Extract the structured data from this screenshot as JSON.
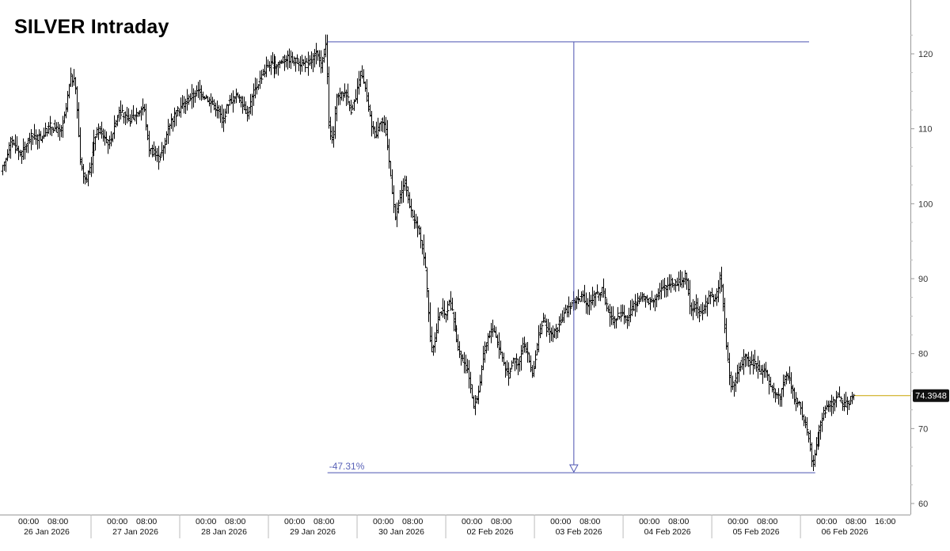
{
  "title": "SILVER Intraday",
  "colors": {
    "bars": "#000000",
    "measure_line": "#4b53b0",
    "last_price_line": "#c8a400",
    "last_price_tag_bg": "#111111",
    "axis": "#999999"
  },
  "chart_data": {
    "type": "ohlc",
    "title": "SILVER Intraday",
    "ylim": [
      58.5,
      125
    ],
    "y_ticks": [
      60,
      70,
      80,
      90,
      100,
      110,
      120
    ],
    "y_tick_labels": [
      "60",
      "70",
      "80",
      "90",
      "100",
      "110",
      "120"
    ],
    "x_range": [
      0,
      92
    ],
    "days": [
      {
        "date": "26 Jan 2026",
        "start": 0
      },
      {
        "date": "27 Jan 2026",
        "start": 9
      },
      {
        "date": "28 Jan 2026",
        "start": 18
      },
      {
        "date": "29 Jan 2026",
        "start": 27
      },
      {
        "date": "30 Jan 2026",
        "start": 36
      },
      {
        "date": "02 Feb 2026",
        "start": 45
      },
      {
        "date": "03 Feb 2026",
        "start": 54
      },
      {
        "date": "04 Feb 2026",
        "start": 63
      },
      {
        "date": "05 Feb 2026",
        "start": 72
      },
      {
        "date": "06 Feb 2026",
        "start": 81
      }
    ],
    "time_labels": [
      "00:00",
      "08:00",
      "16:00"
    ],
    "price_path": [
      [
        0,
        104
      ],
      [
        1,
        108.5
      ],
      [
        2,
        106.5
      ],
      [
        3,
        109
      ],
      [
        4,
        108.8
      ],
      [
        5,
        110.5
      ],
      [
        6,
        109.5
      ],
      [
        6.5,
        112
      ],
      [
        7,
        117
      ],
      [
        7.5,
        116
      ],
      [
        8,
        106
      ],
      [
        8.5,
        103
      ],
      [
        9,
        104.5
      ],
      [
        9.5,
        109
      ],
      [
        10,
        110
      ],
      [
        11,
        108
      ],
      [
        12,
        112.5
      ],
      [
        13,
        111
      ],
      [
        14,
        112.5
      ],
      [
        14.5,
        113
      ],
      [
        15,
        107.5
      ],
      [
        16,
        106
      ],
      [
        16.5,
        107.5
      ],
      [
        17,
        110.5
      ],
      [
        18,
        112.5
      ],
      [
        19,
        114
      ],
      [
        20,
        115
      ],
      [
        21,
        114
      ],
      [
        22,
        112.5
      ],
      [
        22.5,
        111
      ],
      [
        23,
        113.5
      ],
      [
        24,
        114.5
      ],
      [
        25,
        112
      ],
      [
        25.5,
        114.5
      ],
      [
        26,
        116
      ],
      [
        27,
        118.5
      ],
      [
        28,
        118.5
      ],
      [
        29,
        119.5
      ],
      [
        30,
        119
      ],
      [
        31,
        118.5
      ],
      [
        32,
        120
      ],
      [
        32.5,
        118.5
      ],
      [
        33,
        121.5
      ],
      [
        33.3,
        110
      ],
      [
        33.7,
        108
      ],
      [
        34,
        114
      ],
      [
        35,
        115
      ],
      [
        35.5,
        112.5
      ],
      [
        36,
        114
      ],
      [
        36.5,
        117.5
      ],
      [
        37,
        115
      ],
      [
        37.5,
        111
      ],
      [
        38,
        109
      ],
      [
        38.5,
        111.5
      ],
      [
        39,
        110
      ],
      [
        39.5,
        104
      ],
      [
        40,
        98
      ],
      [
        40.5,
        101
      ],
      [
        41,
        103
      ],
      [
        41.5,
        99
      ],
      [
        42,
        97.5
      ],
      [
        42.5,
        96
      ],
      [
        43,
        92
      ],
      [
        43.3,
        87
      ],
      [
        43.6,
        80
      ],
      [
        44,
        82
      ],
      [
        44.5,
        86
      ],
      [
        45,
        85
      ],
      [
        45.5,
        87
      ],
      [
        46,
        84
      ],
      [
        46.5,
        80
      ],
      [
        47,
        79
      ],
      [
        47.5,
        77
      ],
      [
        48,
        73
      ],
      [
        48.5,
        75
      ],
      [
        49,
        80
      ],
      [
        49.5,
        82.5
      ],
      [
        50,
        83.5
      ],
      [
        50.5,
        81
      ],
      [
        51,
        79
      ],
      [
        51.5,
        77
      ],
      [
        52,
        79.5
      ],
      [
        52.5,
        78.5
      ],
      [
        53,
        81.5
      ],
      [
        53.5,
        79.5
      ],
      [
        54,
        77
      ],
      [
        54.5,
        82
      ],
      [
        55,
        84.5
      ],
      [
        55.5,
        83
      ],
      [
        56,
        82.5
      ],
      [
        56.5,
        83.5
      ],
      [
        57,
        85
      ],
      [
        57.5,
        86
      ],
      [
        58,
        87
      ],
      [
        59,
        87.5
      ],
      [
        59.5,
        86.5
      ],
      [
        60,
        87.5
      ],
      [
        61,
        88.5
      ],
      [
        61.5,
        86
      ],
      [
        62,
        84.5
      ],
      [
        62.5,
        85
      ],
      [
        63,
        85.5
      ],
      [
        63.5,
        84.5
      ],
      [
        64,
        86
      ],
      [
        65,
        87.5
      ],
      [
        66,
        87
      ],
      [
        67,
        88.5
      ],
      [
        68,
        89.5
      ],
      [
        69,
        89.5
      ],
      [
        69.5,
        90.5
      ],
      [
        70,
        86
      ],
      [
        70.5,
        86.5
      ],
      [
        71,
        85
      ],
      [
        71.5,
        86.5
      ],
      [
        72,
        88
      ],
      [
        72.5,
        87
      ],
      [
        73,
        90.5
      ],
      [
        73.3,
        86
      ],
      [
        73.6,
        81
      ],
      [
        74,
        76
      ],
      [
        74.5,
        76
      ],
      [
        75,
        78.5
      ],
      [
        75.5,
        79.5
      ],
      [
        76,
        78.5
      ],
      [
        76.5,
        79
      ],
      [
        77,
        77.5
      ],
      [
        77.5,
        78
      ],
      [
        78,
        75.5
      ],
      [
        78.5,
        75
      ],
      [
        79,
        74
      ],
      [
        79.5,
        77
      ],
      [
        80,
        76.5
      ],
      [
        80.5,
        74
      ],
      [
        81,
        73
      ],
      [
        81.5,
        71
      ],
      [
        82,
        68.5
      ],
      [
        82.3,
        65
      ],
      [
        82.6,
        67
      ],
      [
        83,
        70
      ],
      [
        83.5,
        72
      ],
      [
        84,
        73
      ],
      [
        84.5,
        73.5
      ],
      [
        85,
        74.5
      ],
      [
        85.5,
        73
      ],
      [
        86,
        73.5
      ],
      [
        86.5,
        74.4
      ]
    ],
    "measurement": {
      "high": 121.6,
      "low": 64.1,
      "change_label": "-47.31%",
      "x_start": 33,
      "x_end": 82.5,
      "arrow_x": 58
    },
    "last_price": {
      "value": 74.3948,
      "label": "74.3948"
    }
  }
}
